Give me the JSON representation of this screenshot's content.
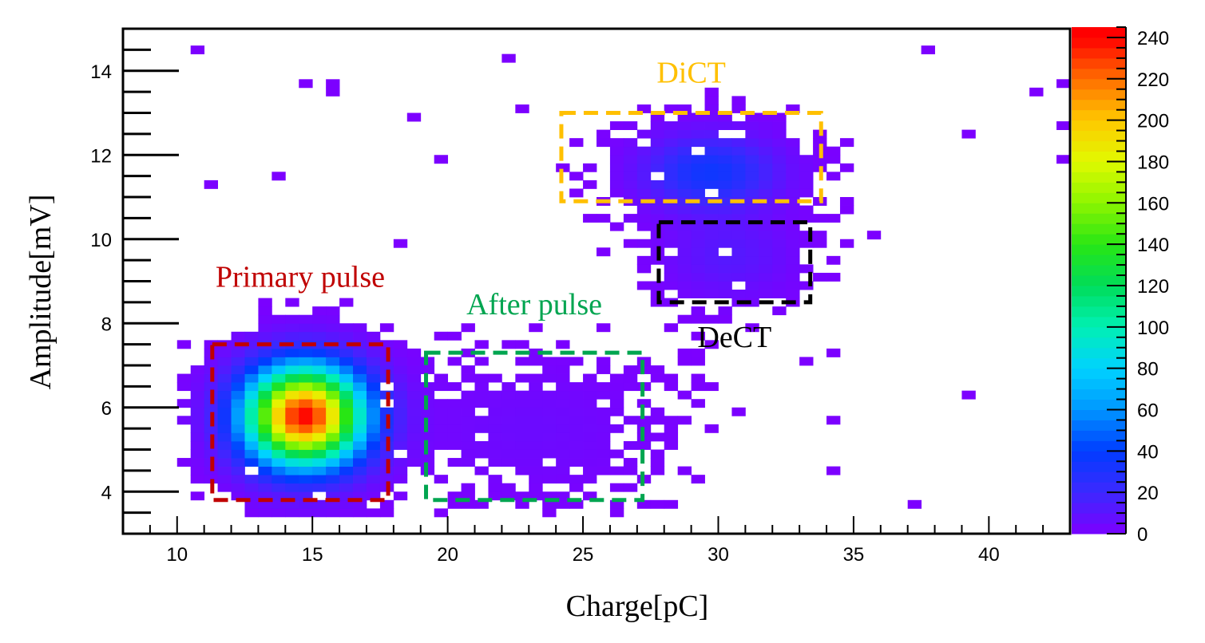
{
  "chart_data": {
    "type": "heatmap",
    "title": "",
    "xlabel": "Charge[pC]",
    "ylabel": "Amplitude[mV]",
    "xlim": [
      8,
      43
    ],
    "ylim": [
      3,
      15
    ],
    "x_ticks": [
      10,
      15,
      20,
      25,
      30,
      35,
      40
    ],
    "y_ticks": [
      4,
      6,
      8,
      10,
      12,
      14
    ],
    "colorbar": {
      "min": 0,
      "max": 245,
      "ticks": [
        0,
        20,
        40,
        60,
        80,
        100,
        120,
        140,
        160,
        180,
        200,
        220,
        240
      ]
    },
    "clusters": [
      {
        "name": "Primary pulse",
        "center_charge": 14.7,
        "center_amplitude": 5.8,
        "sigma_charge": 1.5,
        "sigma_amplitude": 0.8,
        "peak_count": 240
      },
      {
        "name": "After pulse",
        "center_charge": 23.0,
        "center_amplitude": 5.5,
        "sigma_charge": 3.0,
        "sigma_amplitude": 1.0,
        "peak_count": 5
      },
      {
        "name": "DiCT",
        "center_charge": 29.7,
        "center_amplitude": 11.6,
        "sigma_charge": 1.7,
        "sigma_amplitude": 0.6,
        "peak_count": 35
      },
      {
        "name": "DeCT",
        "center_charge": 30.4,
        "center_amplitude": 9.6,
        "sigma_charge": 1.6,
        "sigma_amplitude": 0.7,
        "peak_count": 12
      }
    ],
    "regions": [
      {
        "label": "Primary pulse",
        "charge_range": [
          11.3,
          17.8
        ],
        "amplitude_range": [
          3.8,
          7.5
        ],
        "color": "#c00000"
      },
      {
        "label": "After pulse",
        "charge_range": [
          19.2,
          27.2
        ],
        "amplitude_range": [
          3.8,
          7.3
        ],
        "color": "#00a550"
      },
      {
        "label": "DiCT",
        "charge_range": [
          24.2,
          33.8
        ],
        "amplitude_range": [
          10.9,
          13.0
        ],
        "color": "#ffc000"
      },
      {
        "label": "DeCT",
        "charge_range": [
          27.8,
          33.4
        ],
        "amplitude_range": [
          8.5,
          10.4
        ],
        "color": "#000000"
      }
    ]
  }
}
